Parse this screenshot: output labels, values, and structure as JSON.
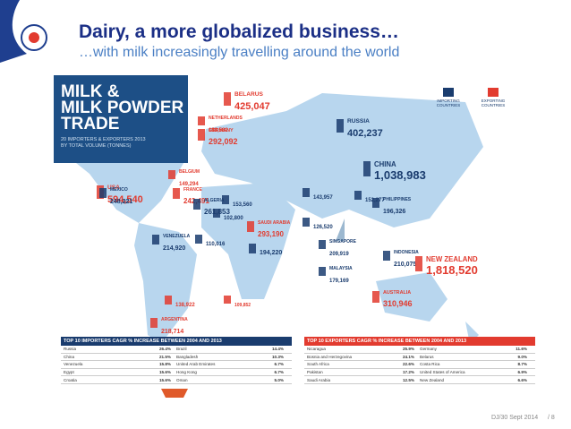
{
  "header": {
    "title": "Dairy, a more globalized business…",
    "subtitle": "…with milk increasingly travelling around the world"
  },
  "infographic": {
    "title": [
      "MILK &",
      "MILK POWDER",
      "TRADE"
    ],
    "subtitle": [
      "20 IMPORTERS & EXPORTERS 2013",
      "BY TOTAL VOLUME (TONNES)"
    ],
    "legend": [
      {
        "label": "IMPORTING COUNTRIES",
        "trade": "import"
      },
      {
        "label": "EXPORTING COUNTRIES",
        "trade": "export"
      }
    ],
    "countries": [
      {
        "name": "BELARUS",
        "value": "425,047",
        "trade": "export"
      },
      {
        "name": "NETHERLANDS",
        "value": "198,582",
        "trade": "export"
      },
      {
        "name": "GERMANY",
        "value": "292,092",
        "trade": "export"
      },
      {
        "name": "RUSSIA",
        "value": "402,237",
        "trade": "import"
      },
      {
        "name": "CHINA",
        "value": "1,038,983",
        "trade": "import"
      },
      {
        "name": "USA",
        "value": "594,540",
        "trade": "export"
      },
      {
        "name": "MEXICO",
        "value": "248,221",
        "trade": "import"
      },
      {
        "name": "BELGIUM",
        "value": "149,294",
        "trade": "export"
      },
      {
        "name": "FRANCE",
        "value": "242,491",
        "trade": "export"
      },
      {
        "name": "ALGERIA",
        "value": "261,853",
        "trade": "import"
      },
      {
        "name": "VENEZUELA",
        "value": "214,920",
        "trade": "import"
      },
      {
        "name": "SAUDI ARABIA",
        "value": "293,190",
        "trade": "export"
      },
      {
        "value": "194,220",
        "trade": "import"
      },
      {
        "value": "143,957",
        "trade": "import"
      },
      {
        "name": "PHILIPPINES",
        "value": "196,326",
        "trade": "import"
      },
      {
        "name": "INDONESIA",
        "value": "210,075",
        "trade": "import"
      },
      {
        "name": "NEW ZEALAND",
        "value": "1,818,520",
        "trade": "export"
      },
      {
        "name": "AUSTRALIA",
        "value": "310,946",
        "trade": "export"
      },
      {
        "name": "MALAYSIA",
        "value": "179,169",
        "trade": "import"
      },
      {
        "name": "SINGAPORE",
        "value": "209,919",
        "trade": "import"
      },
      {
        "name": "ARGENTINA",
        "value": "218,714",
        "trade": "export"
      },
      {
        "value": "138,922",
        "trade": "export"
      },
      {
        "value": "109,852",
        "trade": "export"
      },
      {
        "value": "152,277",
        "trade": "import"
      },
      {
        "value": "153,560",
        "trade": "import"
      },
      {
        "value": "102,800",
        "trade": "import"
      },
      {
        "value": "110,016",
        "trade": "import"
      },
      {
        "value": "126,520",
        "trade": "import"
      }
    ]
  },
  "tables": [
    {
      "title": "TOP 10 IMPORTERS CAGR % INCREASE BETWEEN 2004 AND 2013",
      "rows": [
        [
          "Russia",
          "26.4%",
          "Brazil",
          "14.4%"
        ],
        [
          "China",
          "21.5%",
          "Bangladesh",
          "10.3%"
        ],
        [
          "Venezuela",
          "15.8%",
          "United Arab Emirates",
          "6.7%"
        ],
        [
          "Egypt",
          "15.6%",
          "Hong Kong",
          "6.7%"
        ],
        [
          "Croatia",
          "15.6%",
          "Oman",
          "5.0%"
        ]
      ]
    },
    {
      "title": "TOP 10 EXPORTERS CAGR % INCREASE BETWEEN 2004 AND 2013",
      "rows": [
        [
          "Nicaragua",
          "25.9%",
          "Germany",
          "11.6%"
        ],
        [
          "Bosnia and Herzegovina",
          "24.1%",
          "Belarus",
          "9.0%"
        ],
        [
          "South Africa",
          "22.6%",
          "Costa Rica",
          "8.7%"
        ],
        [
          "Pakistan",
          "17.2%",
          "United States of America",
          "6.9%"
        ],
        [
          "Saudi Arabia",
          "12.5%",
          "New Zealand",
          "6.6%"
        ]
      ]
    }
  ],
  "footer": {
    "date": "DJ/30 Sept 2014",
    "page": "/ 8"
  }
}
